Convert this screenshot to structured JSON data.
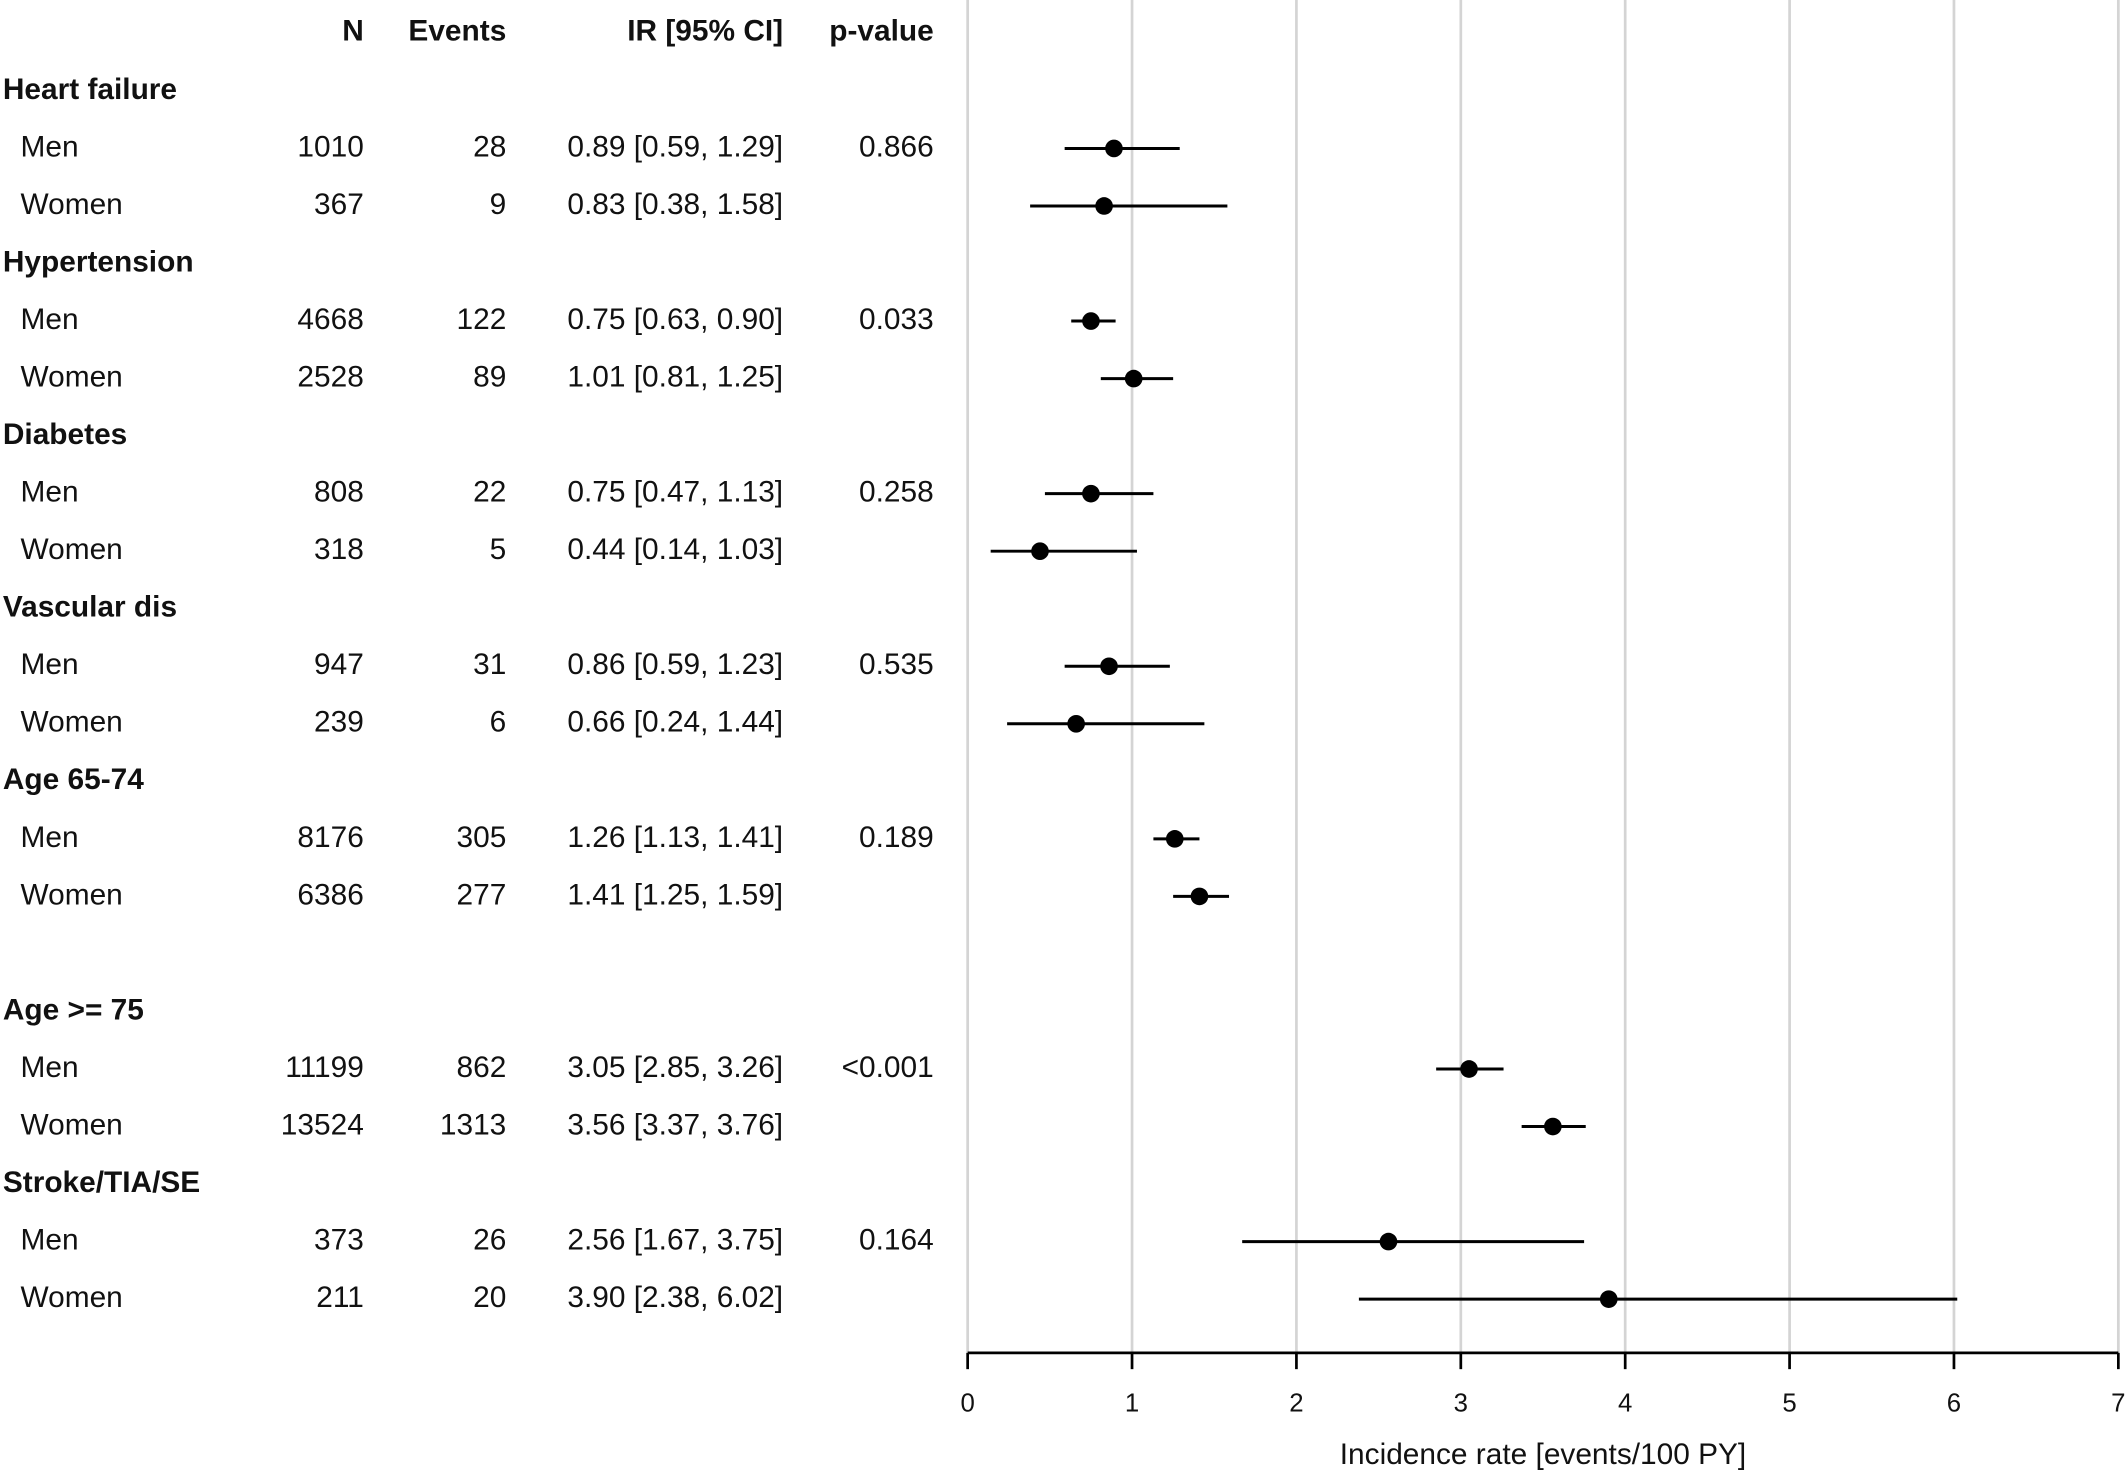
{
  "chart_data": {
    "type": "forest",
    "columns": [
      "N",
      "Events",
      "IR [95% CI]",
      "p-value"
    ],
    "x_label": "Incidence rate [events/100 PY]",
    "xlim": [
      0,
      7
    ],
    "xticks": [
      0,
      1,
      2,
      3,
      4,
      5,
      6,
      7
    ],
    "grid": true,
    "color": "#000000",
    "groups": [
      {
        "name": "Heart failure",
        "rows": [
          {
            "label": "Men",
            "n": 1010,
            "events": 28,
            "ci_label": "0.89 [0.59, 1.29]",
            "p_value": "0.866",
            "ir": 0.89,
            "lo": 0.59,
            "hi": 1.29
          },
          {
            "label": "Women",
            "n": 367,
            "events": 9,
            "ci_label": "0.83 [0.38, 1.58]",
            "ir": 0.83,
            "lo": 0.38,
            "hi": 1.58
          }
        ]
      },
      {
        "name": "Hypertension",
        "rows": [
          {
            "label": "Men",
            "n": 4668,
            "events": 122,
            "ci_label": "0.75 [0.63, 0.90]",
            "p_value": "0.033",
            "ir": 0.75,
            "lo": 0.63,
            "hi": 0.9
          },
          {
            "label": "Women",
            "n": 2528,
            "events": 89,
            "ci_label": "1.01 [0.81, 1.25]",
            "ir": 1.01,
            "lo": 0.81,
            "hi": 1.25
          }
        ]
      },
      {
        "name": "Diabetes",
        "rows": [
          {
            "label": "Men",
            "n": 808,
            "events": 22,
            "ci_label": "0.75 [0.47, 1.13]",
            "p_value": "0.258",
            "ir": 0.75,
            "lo": 0.47,
            "hi": 1.13
          },
          {
            "label": "Women",
            "n": 318,
            "events": 5,
            "ci_label": "0.44 [0.14, 1.03]",
            "ir": 0.44,
            "lo": 0.14,
            "hi": 1.03
          }
        ]
      },
      {
        "name": "Vascular dis",
        "rows": [
          {
            "label": "Men",
            "n": 947,
            "events": 31,
            "ci_label": "0.86 [0.59, 1.23]",
            "p_value": "0.535",
            "ir": 0.86,
            "lo": 0.59,
            "hi": 1.23
          },
          {
            "label": "Women",
            "n": 239,
            "events": 6,
            "ci_label": "0.66 [0.24, 1.44]",
            "ir": 0.66,
            "lo": 0.24,
            "hi": 1.44
          }
        ]
      },
      {
        "name": "Age 65-74",
        "rows": [
          {
            "label": "Men",
            "n": 8176,
            "events": 305,
            "ci_label": "1.26 [1.13, 1.41]",
            "p_value": "0.189",
            "ir": 1.26,
            "lo": 1.13,
            "hi": 1.41
          },
          {
            "label": "Women",
            "n": 6386,
            "events": 277,
            "ci_label": "1.41 [1.25, 1.59]",
            "ir": 1.41,
            "lo": 1.25,
            "hi": 1.59
          }
        ]
      },
      {
        "name": "Age >= 75",
        "rows": [
          {
            "label": "Men",
            "n": 11199,
            "events": 862,
            "ci_label": "3.05 [2.85, 3.26]",
            "p_value": "<0.001",
            "ir": 3.05,
            "lo": 2.85,
            "hi": 3.26
          },
          {
            "label": "Women",
            "n": 13524,
            "events": 1313,
            "ci_label": "3.56 [3.37, 3.76]",
            "ir": 3.56,
            "lo": 3.37,
            "hi": 3.76
          }
        ]
      },
      {
        "name": "Stroke/TIA/SE",
        "rows": [
          {
            "label": "Men",
            "n": 373,
            "events": 26,
            "ci_label": "2.56 [1.67, 3.75]",
            "p_value": "0.164",
            "ir": 2.56,
            "lo": 1.67,
            "hi": 3.75
          },
          {
            "label": "Women",
            "n": 211,
            "events": 20,
            "ci_label": "3.90 [2.38, 6.02]",
            "ir": 3.9,
            "lo": 2.38,
            "hi": 6.02
          }
        ]
      }
    ]
  }
}
